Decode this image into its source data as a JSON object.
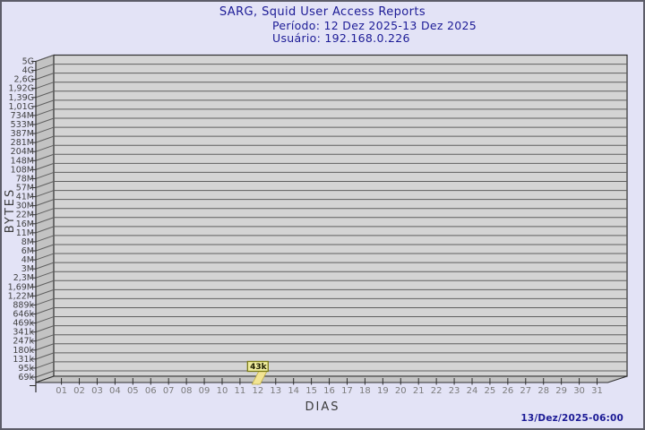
{
  "header": {
    "title": "SARG, Squid User Access Reports",
    "period_line": "Período: 12 Dez 2025-13 Dez 2025",
    "user_line": "Usuário: 192.168.0.226"
  },
  "footer": {
    "timestamp": "13/Dez/2025-06:00"
  },
  "colors": {
    "header_text": "#1c1b96",
    "plot_fill": "#d4d4d4",
    "wall_fill": "#c3c3c3",
    "grid_line": "#5f5f5f",
    "frame_line": "#2e2e2e",
    "bar_fill": "#f2e493",
    "annotation_fill": "#f0ed9e",
    "annotation_border": "#7c7c18",
    "background": "#e3e3f6"
  },
  "chart_data": {
    "type": "bar",
    "title": "SARG, Squid User Access Reports",
    "subtitle_period": "Período: 12 Dez 2025-13 Dez 2025",
    "subtitle_user": "Usuário: 192.168.0.226",
    "xlabel": "DIAS",
    "ylabel": "BYTES",
    "y_scale": "log",
    "grid": "horizontal",
    "style": "3d-bar",
    "ytick_labels_top_to_bottom": [
      "5G",
      "4G",
      "2,6G",
      "1,92G",
      "1,39G",
      "1,01G",
      "734M",
      "533M",
      "387M",
      "281M",
      "204M",
      "148M",
      "108M",
      "78M",
      "57M",
      "41M",
      "30M",
      "22M",
      "16M",
      "11M",
      "8M",
      "6M",
      "4M",
      "3M",
      "2,3M",
      "1,69M",
      "1,22M",
      "889k",
      "646k",
      "469k",
      "341k",
      "247k",
      "180k",
      "131k",
      "95k",
      "69k"
    ],
    "categories": [
      "01",
      "02",
      "03",
      "04",
      "05",
      "06",
      "07",
      "08",
      "09",
      "10",
      "11",
      "12",
      "13",
      "14",
      "15",
      "16",
      "17",
      "18",
      "19",
      "20",
      "21",
      "22",
      "23",
      "24",
      "25",
      "26",
      "27",
      "28",
      "29",
      "30",
      "31"
    ],
    "series": [
      {
        "name": "bytes",
        "values": [
          null,
          null,
          null,
          null,
          null,
          null,
          null,
          null,
          null,
          null,
          null,
          43000,
          null,
          null,
          null,
          null,
          null,
          null,
          null,
          null,
          null,
          null,
          null,
          null,
          null,
          null,
          null,
          null,
          null,
          null,
          null
        ]
      }
    ],
    "annotations": [
      {
        "category": "12",
        "label": "43k"
      }
    ]
  }
}
